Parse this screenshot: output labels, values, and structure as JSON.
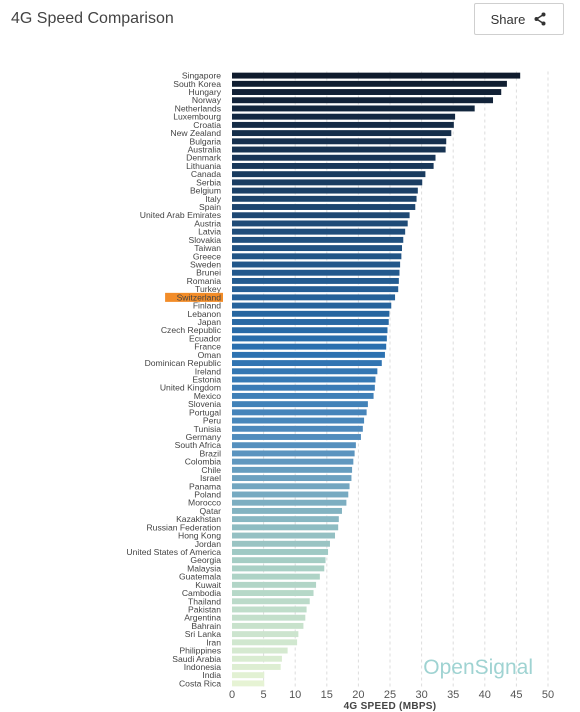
{
  "header": {
    "title": "4G Speed Comparison",
    "share_label": "Share"
  },
  "brand": {
    "text": "OpenSignal",
    "color": "#9fd3d2"
  },
  "icons": {
    "share": "share-icon"
  },
  "colors": {
    "bar_dark": "#0f1b2d",
    "bar_mid": "#2a70b0",
    "bar_light": "#e3f2d5",
    "highlight": "#f28c28",
    "grid": "#dddddd"
  },
  "chart_data": {
    "type": "bar",
    "orientation": "horizontal",
    "title": "4G Speed Comparison",
    "xlabel": "4G SPEED (MBPS)",
    "ylabel": "",
    "xlim": [
      0,
      50
    ],
    "xticks": [
      0,
      5,
      10,
      15,
      20,
      25,
      30,
      35,
      40,
      45,
      50
    ],
    "grid": true,
    "highlight": "Switzerland",
    "categories": [
      "Singapore",
      "South Korea",
      "Hungary",
      "Norway",
      "Netherlands",
      "Luxembourg",
      "Croatia",
      "New Zealand",
      "Bulgaria",
      "Australia",
      "Denmark",
      "Lithuania",
      "Canada",
      "Serbia",
      "Belgium",
      "Italy",
      "Spain",
      "United Arab Emirates",
      "Austria",
      "Latvia",
      "Slovakia",
      "Taiwan",
      "Greece",
      "Sweden",
      "Brunei",
      "Romania",
      "Turkey",
      "Switzerland",
      "Finland",
      "Lebanon",
      "Japan",
      "Czech Republic",
      "Ecuador",
      "France",
      "Oman",
      "Dominican Republic",
      "Ireland",
      "Estonia",
      "United Kingdom",
      "Mexico",
      "Slovenia",
      "Portugal",
      "Peru",
      "Tunisia",
      "Germany",
      "South Africa",
      "Brazil",
      "Colombia",
      "Chile",
      "Israel",
      "Panama",
      "Poland",
      "Morocco",
      "Qatar",
      "Kazakhstan",
      "Russian Federation",
      "Hong Kong",
      "Jordan",
      "United States of America",
      "Georgia",
      "Malaysia",
      "Guatemala",
      "Kuwait",
      "Cambodia",
      "Thailand",
      "Pakistan",
      "Argentina",
      "Bahrain",
      "Sri Lanka",
      "Iran",
      "Philippines",
      "Saudi Arabia",
      "Indonesia",
      "India",
      "Costa Rica"
    ],
    "values": [
      45.6,
      43.5,
      42.6,
      41.3,
      38.4,
      35.3,
      35.1,
      34.7,
      33.9,
      33.8,
      32.2,
      31.9,
      30.6,
      30.1,
      29.4,
      29.2,
      29.0,
      28.1,
      27.8,
      27.4,
      27.1,
      26.9,
      26.8,
      26.6,
      26.5,
      26.4,
      26.3,
      25.8,
      25.2,
      24.9,
      24.8,
      24.6,
      24.5,
      24.4,
      24.2,
      23.7,
      23.0,
      22.7,
      22.6,
      22.4,
      21.5,
      21.3,
      20.9,
      20.7,
      20.4,
      19.6,
      19.4,
      19.2,
      19.0,
      18.9,
      18.6,
      18.4,
      18.1,
      17.4,
      16.9,
      16.8,
      16.3,
      15.5,
      15.2,
      14.8,
      14.6,
      13.9,
      13.3,
      12.9,
      12.3,
      11.8,
      11.6,
      11.3,
      10.5,
      10.3,
      8.8,
      7.9,
      7.7,
      5.1,
      5.1
    ]
  }
}
